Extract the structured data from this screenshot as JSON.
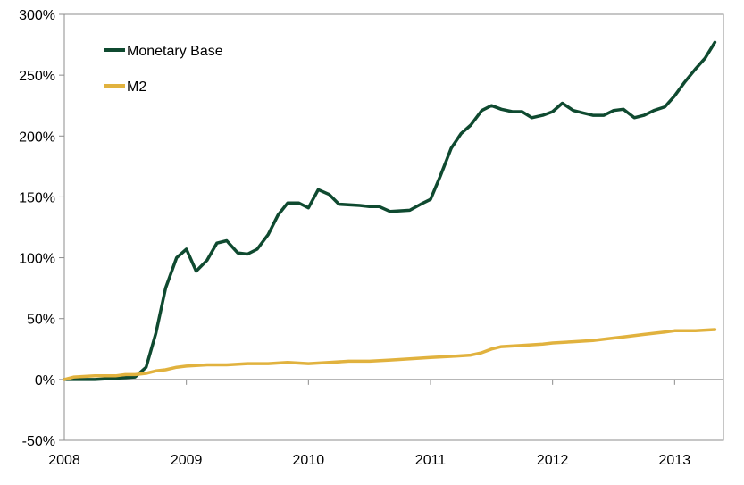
{
  "chart_data": {
    "type": "line",
    "xlim": [
      2008.0,
      2013.4
    ],
    "ylim": [
      -50,
      300
    ],
    "x_ticks": [
      {
        "value": 2008,
        "label": "2008"
      },
      {
        "value": 2009,
        "label": "2009"
      },
      {
        "value": 2010,
        "label": "2010"
      },
      {
        "value": 2011,
        "label": "2011"
      },
      {
        "value": 2012,
        "label": "2012"
      },
      {
        "value": 2013,
        "label": "2013"
      }
    ],
    "y_ticks": [
      {
        "value": 300,
        "label": "300%"
      },
      {
        "value": 250,
        "label": "250%"
      },
      {
        "value": 200,
        "label": "200%"
      },
      {
        "value": 150,
        "label": "150%"
      },
      {
        "value": 100,
        "label": "100%"
      },
      {
        "value": 50,
        "label": "50%"
      },
      {
        "value": 0,
        "label": "0%"
      },
      {
        "value": -50,
        "label": "-50%"
      }
    ],
    "grid": false,
    "legend_position": "top-left",
    "series": [
      {
        "name": "Monetary Base",
        "color": "#0f4a30",
        "points": [
          [
            2008.0,
            0
          ],
          [
            2008.25,
            0
          ],
          [
            2008.42,
            1
          ],
          [
            2008.58,
            2
          ],
          [
            2008.67,
            10
          ],
          [
            2008.75,
            38
          ],
          [
            2008.83,
            75
          ],
          [
            2008.92,
            100
          ],
          [
            2009.0,
            107
          ],
          [
            2009.08,
            89
          ],
          [
            2009.17,
            98
          ],
          [
            2009.25,
            112
          ],
          [
            2009.33,
            114
          ],
          [
            2009.42,
            104
          ],
          [
            2009.5,
            103
          ],
          [
            2009.58,
            107
          ],
          [
            2009.67,
            119
          ],
          [
            2009.75,
            135
          ],
          [
            2009.83,
            145
          ],
          [
            2009.92,
            145
          ],
          [
            2010.0,
            141
          ],
          [
            2010.08,
            156
          ],
          [
            2010.17,
            152
          ],
          [
            2010.25,
            144
          ],
          [
            2010.42,
            143
          ],
          [
            2010.5,
            142
          ],
          [
            2010.58,
            142
          ],
          [
            2010.67,
            138
          ],
          [
            2010.83,
            139
          ],
          [
            2010.92,
            144
          ],
          [
            2011.0,
            148
          ],
          [
            2011.08,
            167
          ],
          [
            2011.17,
            190
          ],
          [
            2011.25,
            202
          ],
          [
            2011.33,
            209
          ],
          [
            2011.42,
            221
          ],
          [
            2011.5,
            225
          ],
          [
            2011.58,
            222
          ],
          [
            2011.67,
            220
          ],
          [
            2011.75,
            220
          ],
          [
            2011.83,
            215
          ],
          [
            2011.92,
            217
          ],
          [
            2012.0,
            220
          ],
          [
            2012.08,
            227
          ],
          [
            2012.17,
            221
          ],
          [
            2012.25,
            219
          ],
          [
            2012.33,
            217
          ],
          [
            2012.42,
            217
          ],
          [
            2012.5,
            221
          ],
          [
            2012.58,
            222
          ],
          [
            2012.67,
            215
          ],
          [
            2012.75,
            217
          ],
          [
            2012.83,
            221
          ],
          [
            2012.92,
            224
          ],
          [
            2013.0,
            233
          ],
          [
            2013.08,
            244
          ],
          [
            2013.17,
            255
          ],
          [
            2013.25,
            264
          ],
          [
            2013.33,
            277
          ]
        ]
      },
      {
        "name": "M2",
        "color": "#e1b23e",
        "points": [
          [
            2008.0,
            0
          ],
          [
            2008.08,
            2
          ],
          [
            2008.25,
            3
          ],
          [
            2008.42,
            3
          ],
          [
            2008.5,
            4
          ],
          [
            2008.58,
            4
          ],
          [
            2008.67,
            5
          ],
          [
            2008.75,
            7
          ],
          [
            2008.83,
            8
          ],
          [
            2008.92,
            10
          ],
          [
            2009.0,
            11
          ],
          [
            2009.17,
            12
          ],
          [
            2009.33,
            12
          ],
          [
            2009.5,
            13
          ],
          [
            2009.67,
            13
          ],
          [
            2009.83,
            14
          ],
          [
            2010.0,
            13
          ],
          [
            2010.17,
            14
          ],
          [
            2010.33,
            15
          ],
          [
            2010.5,
            15
          ],
          [
            2010.67,
            16
          ],
          [
            2010.83,
            17
          ],
          [
            2011.0,
            18
          ],
          [
            2011.17,
            19
          ],
          [
            2011.33,
            20
          ],
          [
            2011.42,
            22
          ],
          [
            2011.5,
            25
          ],
          [
            2011.58,
            27
          ],
          [
            2011.75,
            28
          ],
          [
            2011.92,
            29
          ],
          [
            2012.0,
            30
          ],
          [
            2012.17,
            31
          ],
          [
            2012.33,
            32
          ],
          [
            2012.5,
            34
          ],
          [
            2012.58,
            35
          ],
          [
            2012.75,
            37
          ],
          [
            2012.83,
            38
          ],
          [
            2012.92,
            39
          ],
          [
            2013.0,
            40
          ],
          [
            2013.08,
            40
          ],
          [
            2013.17,
            40
          ],
          [
            2013.33,
            41
          ]
        ]
      }
    ]
  }
}
